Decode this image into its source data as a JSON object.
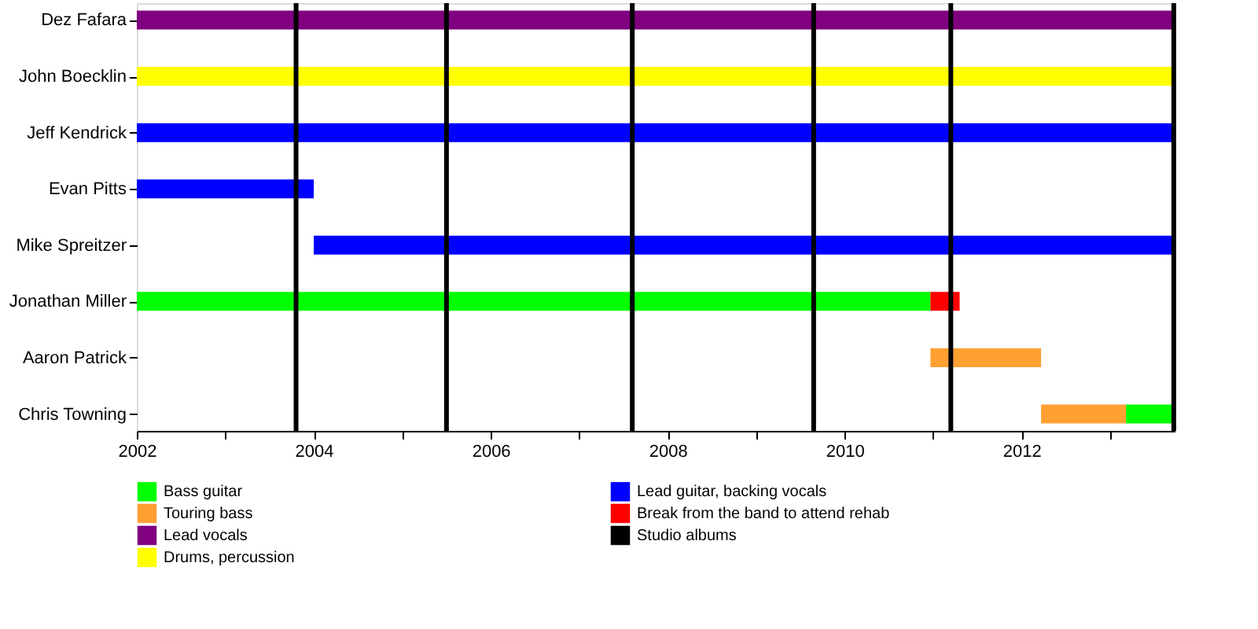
{
  "chart_data": {
    "type": "bar",
    "orientation": "horizontal",
    "categories": [
      "Dez Fafara",
      "John Boecklin",
      "Jeff Kendrick",
      "Evan Pitts",
      "Mike Spreitzer",
      "Jonathan Miller",
      "Aaron Patrick",
      "Chris Towning"
    ],
    "series": [
      {
        "name": "Bass guitar",
        "color": "#00ff00",
        "base": [
          null,
          null,
          null,
          null,
          null,
          2002,
          null,
          2013.18
        ],
        "values": [
          null,
          null,
          null,
          null,
          null,
          8.97,
          null,
          0.55
        ]
      },
      {
        "name": "Touring bass",
        "color": "#ffa033",
        "base": [
          null,
          null,
          null,
          null,
          null,
          null,
          2010.97,
          2012.22
        ],
        "values": [
          null,
          null,
          null,
          null,
          null,
          null,
          1.25,
          0.96
        ]
      },
      {
        "name": "Lead vocals",
        "color": "#800080",
        "base": [
          2002,
          null,
          null,
          null,
          null,
          null,
          null,
          null
        ],
        "values": [
          11.73,
          null,
          null,
          null,
          null,
          null,
          null,
          null
        ]
      },
      {
        "name": "Drums, percussion",
        "color": "#ffff00",
        "base": [
          null,
          2002,
          null,
          null,
          null,
          null,
          null,
          null
        ],
        "values": [
          null,
          11.73,
          null,
          null,
          null,
          null,
          null,
          null
        ]
      },
      {
        "name": "Lead guitar, backing vocals",
        "color": "#0000ff",
        "base": [
          null,
          null,
          2002,
          2002,
          2004.0,
          null,
          null,
          null
        ],
        "values": [
          null,
          null,
          11.73,
          2.0,
          9.73,
          null,
          null,
          null
        ]
      },
      {
        "name": "Break from the band to attend rehab",
        "color": "#ff0000",
        "base": [
          null,
          null,
          null,
          null,
          null,
          2010.97,
          null,
          null
        ],
        "values": [
          null,
          null,
          null,
          null,
          null,
          0.33,
          null,
          null
        ]
      }
    ],
    "ref_lines": [
      {
        "axis": "x",
        "value": 2003.8,
        "label": "Studio albums",
        "color": "#000000"
      },
      {
        "axis": "x",
        "value": 2005.5,
        "color": "#000000"
      },
      {
        "axis": "x",
        "value": 2007.6,
        "color": "#000000"
      },
      {
        "axis": "x",
        "value": 2009.65,
        "color": "#000000"
      },
      {
        "axis": "x",
        "value": 2011.2,
        "color": "#000000"
      },
      {
        "axis": "x",
        "value": 2013.72,
        "color": "#000000"
      }
    ],
    "xlim": [
      2002,
      2013.73
    ],
    "xticks": [
      2002,
      {
        "value": 2003,
        "label": null
      },
      2004,
      {
        "value": 2005,
        "label": null
      },
      2006,
      {
        "value": 2007,
        "label": null
      },
      2008,
      {
        "value": 2009,
        "label": null
      },
      2010,
      {
        "value": 2011,
        "label": null
      },
      2012,
      {
        "value": 2013,
        "label": null
      }
    ],
    "grid": false,
    "legend": "bottom"
  }
}
